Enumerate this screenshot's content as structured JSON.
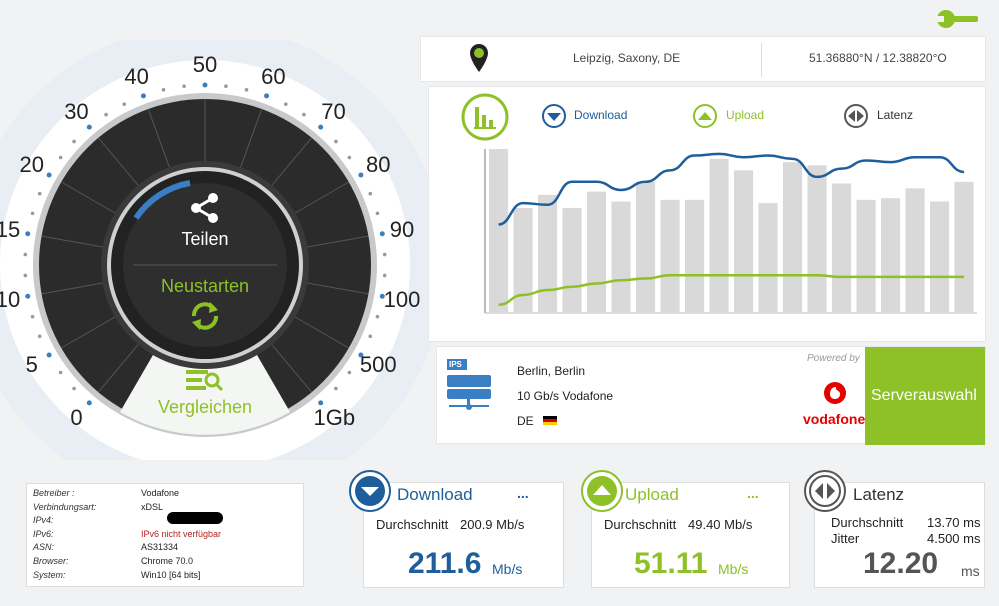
{
  "location": {
    "city": "Leipzig, Saxony, DE",
    "coords": "51.36880°N / 12.38820°O"
  },
  "gauge": {
    "ticks": [
      "0",
      "5",
      "10",
      "15",
      "20",
      "30",
      "40",
      "50",
      "60",
      "70",
      "80",
      "90",
      "100",
      "500",
      "1Gb"
    ],
    "share_label": "Teilen",
    "restart_label": "Neustarten",
    "compare_label": "Vergleichen"
  },
  "legend": {
    "download": "Download",
    "upload": "Upload",
    "latency": "Latenz"
  },
  "chart_data": {
    "type": "line",
    "x": [
      0,
      1,
      2,
      3,
      4,
      5,
      6,
      7,
      8,
      9,
      10,
      11,
      12,
      13,
      14,
      15,
      16,
      17,
      18,
      19
    ],
    "bars": [
      100,
      64,
      72,
      64,
      74,
      68,
      80,
      69,
      69,
      94,
      87,
      67,
      92,
      90,
      79,
      69,
      70,
      76,
      68,
      80
    ],
    "series": [
      {
        "name": "Download",
        "values": [
          54,
          67,
          66,
          80,
          80,
          75,
          80,
          87,
          96,
          97,
          95,
          96,
          94,
          83,
          88,
          93,
          92,
          95,
          95,
          86
        ],
        "color": "#1e5e9a"
      },
      {
        "name": "Upload",
        "values": [
          5,
          11,
          14,
          16,
          18,
          20,
          21,
          23,
          23,
          23,
          23,
          23,
          23,
          23,
          22,
          22,
          22,
          22,
          22,
          22
        ],
        "color": "#8dc127"
      }
    ]
  },
  "server": {
    "city": "Berlin, Berlin",
    "provider": "10 Gb/s Vodafone",
    "country": "DE",
    "ips_badge": "IPS",
    "powered_by": "Powered by",
    "sponsor": "vodafone",
    "select_button": "Serverauswahl"
  },
  "info": [
    {
      "key": "Betreiber :",
      "value": "Vodafone",
      "color": "#222"
    },
    {
      "key": "Verbindungsart:",
      "value": "xDSL",
      "color": "#222"
    },
    {
      "key": "IPv4:",
      "value": "",
      "color": "#222"
    },
    {
      "key": "IPv6:",
      "value": "IPv6 nicht verfügbar",
      "color": "#b22222"
    },
    {
      "key": "ASN:",
      "value": "AS31334",
      "color": "#222"
    },
    {
      "key": "Browser:",
      "value": "Chrome 70.0",
      "color": "#222"
    },
    {
      "key": "System:",
      "value": "Win10 [64 bits]",
      "color": "#222"
    }
  ],
  "cards": {
    "download": {
      "title": "Download",
      "dots": "...",
      "avg_label": "Durchschnitt",
      "avg_value": "200.9 Mb/s",
      "value": "211.6",
      "unit": "Mb/s",
      "color": "#1e5e9a"
    },
    "upload": {
      "title": "Upload",
      "dots": "...",
      "avg_label": "Durchschnitt",
      "avg_value": "49.40 Mb/s",
      "value": "51.11",
      "unit": "Mb/s",
      "color": "#8dc127"
    },
    "latency": {
      "title": "Latenz",
      "avg_label": "Durchschnitt",
      "avg_value": "13.70 ms",
      "jitter_label": "Jitter",
      "jitter_value": "4.500 ms",
      "value": "12.20",
      "unit": "ms",
      "color": "#555"
    }
  },
  "colors": {
    "accent_green": "#8dc127",
    "accent_blue": "#1e5e9a",
    "bar_gray": "#d9d9d9"
  }
}
